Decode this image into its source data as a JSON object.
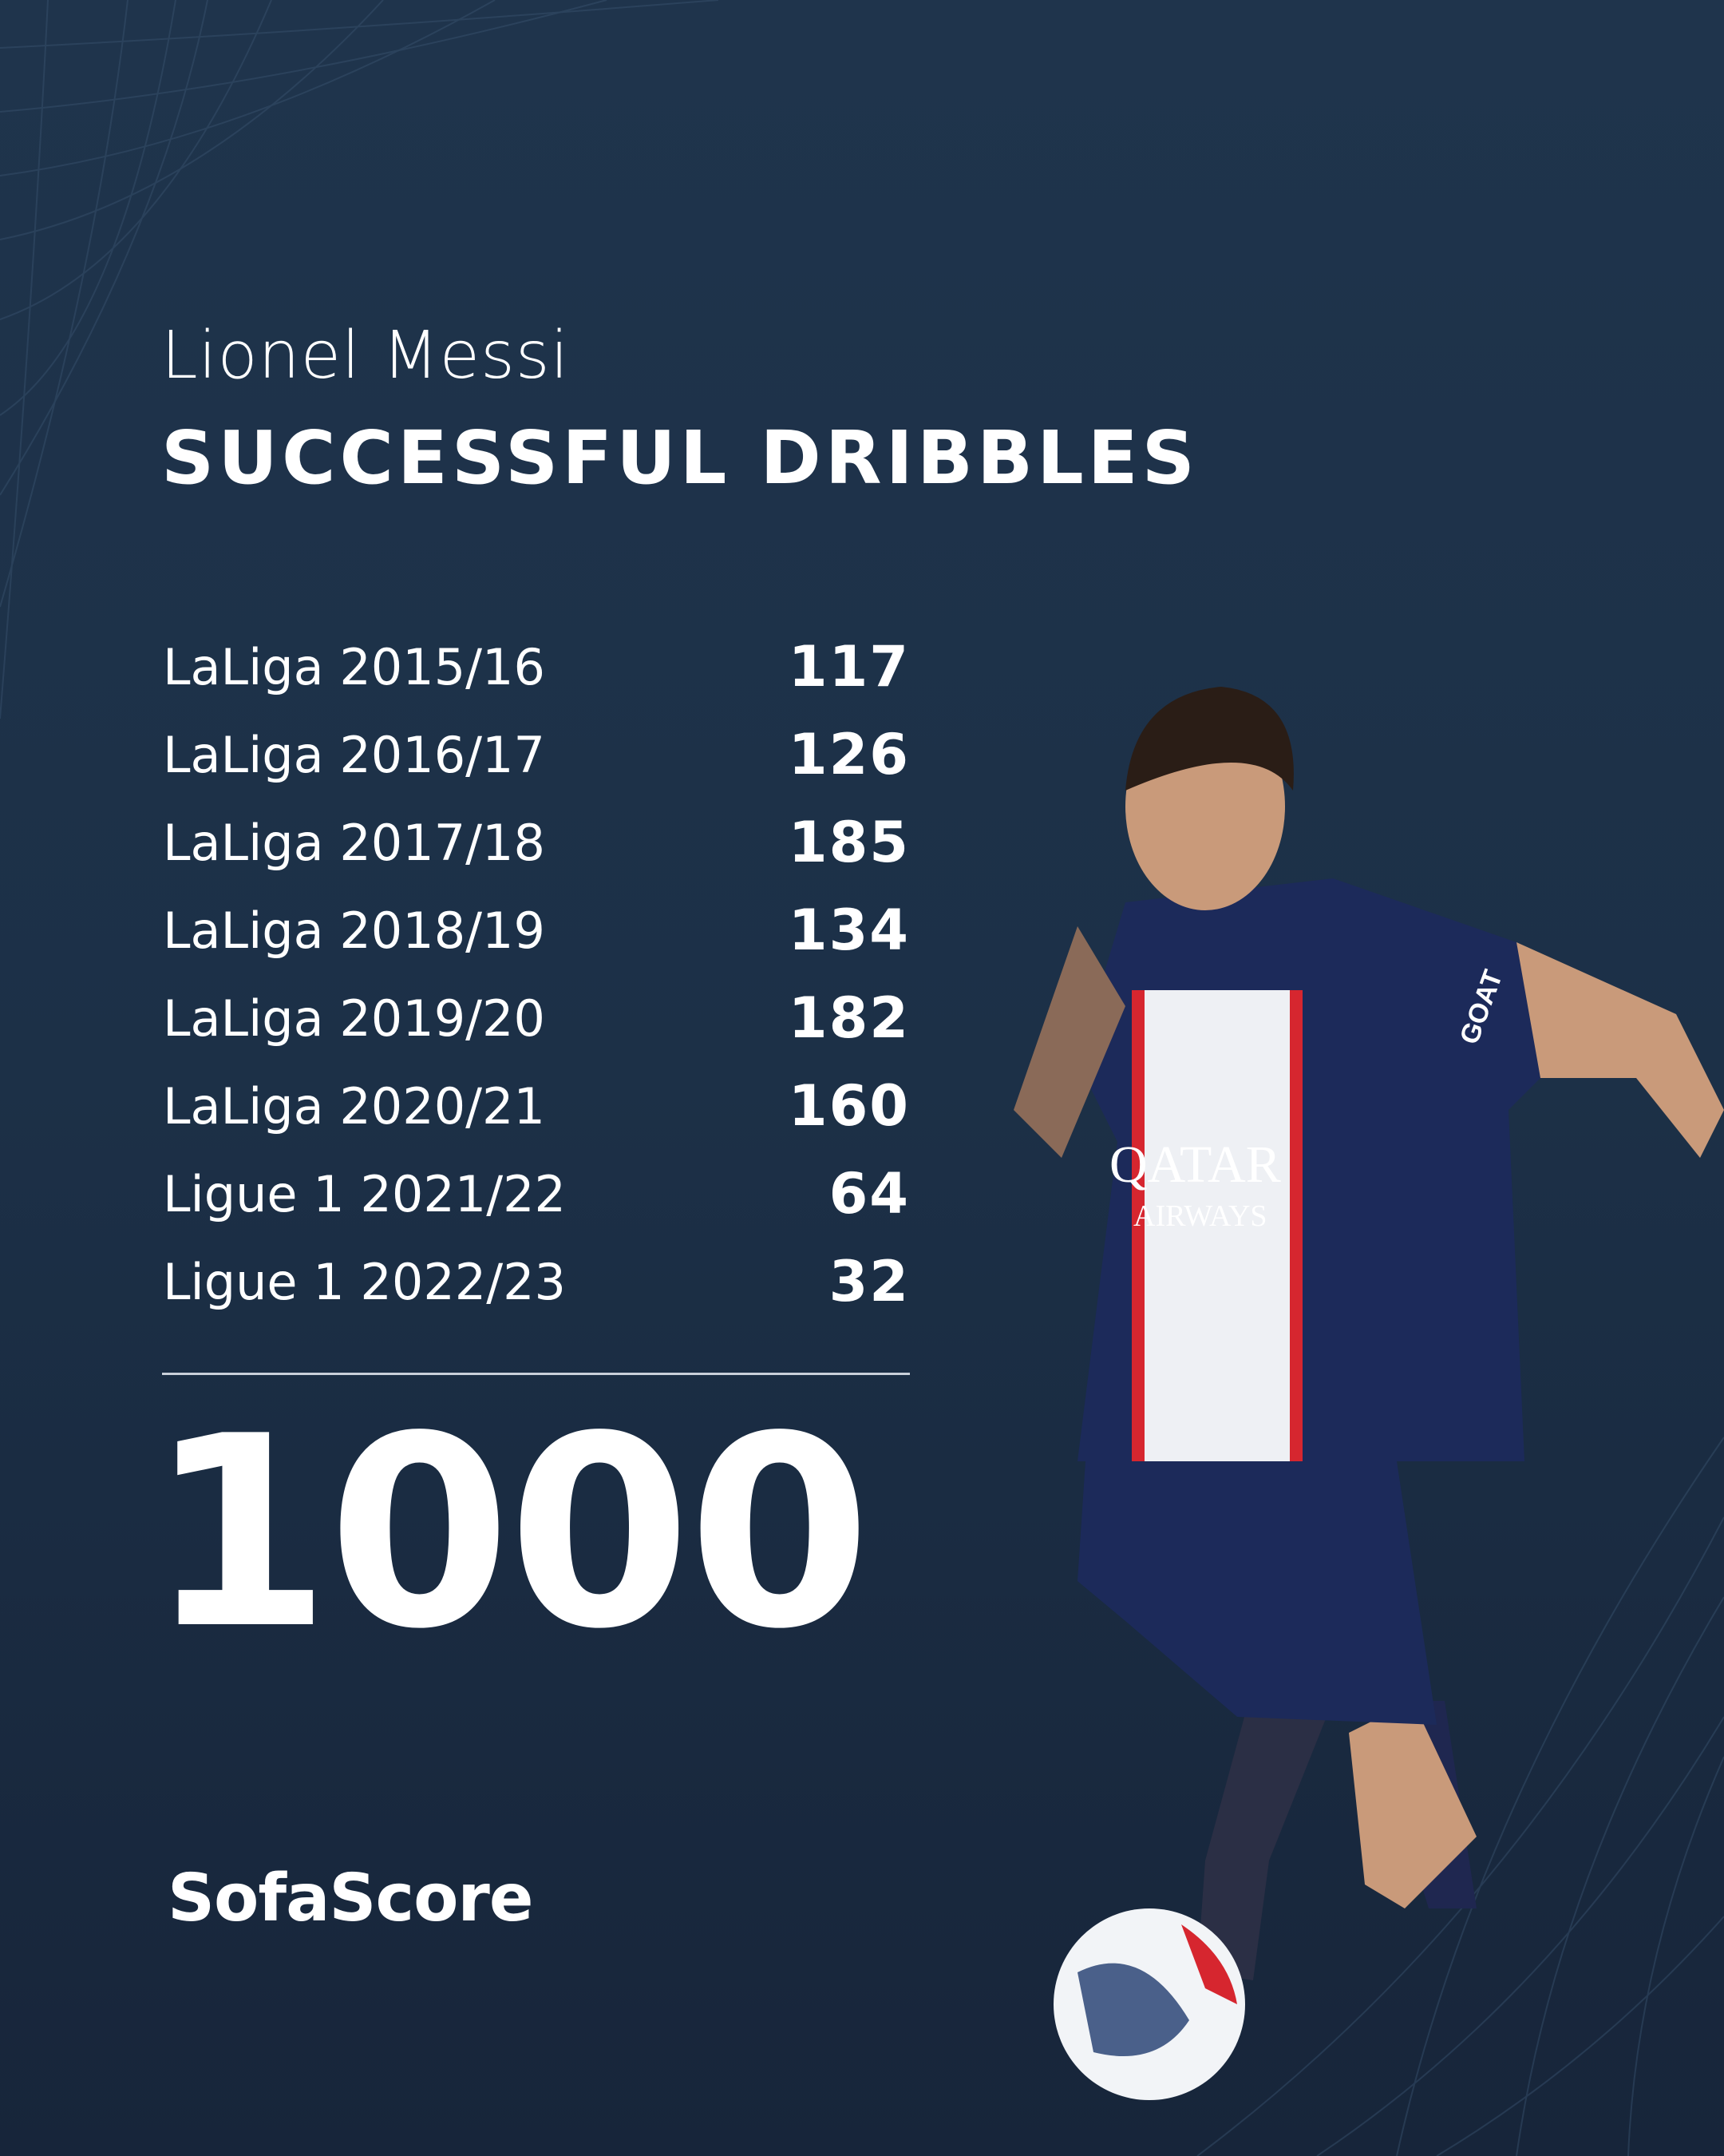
{
  "header": {
    "player_name": "Lionel Messi",
    "stat_title": "SUCCESSFUL DRIBBLES"
  },
  "seasons": [
    {
      "label": "LaLiga 2015/16",
      "value": "117"
    },
    {
      "label": "LaLiga 2016/17",
      "value": "126"
    },
    {
      "label": "LaLiga 2017/18",
      "value": "185"
    },
    {
      "label": "LaLiga 2018/19",
      "value": "134"
    },
    {
      "label": "LaLiga 2019/20",
      "value": "182"
    },
    {
      "label": "LaLiga 2020/21",
      "value": "160"
    },
    {
      "label": "Ligue 1 2021/22",
      "value": "64"
    },
    {
      "label": "Ligue 1 2022/23",
      "value": "32"
    }
  ],
  "total": "1000",
  "brand": {
    "logo_text": "SofaScore"
  },
  "photo": {
    "jersey_text": "QATAR",
    "jersey_subtext": "AIRWAYS",
    "sleeve_text": "GOAT"
  },
  "colors": {
    "background": "#1e334b",
    "text": "#ffffff",
    "jersey": "#1c2a5a",
    "stripe_red": "#d6262f"
  }
}
